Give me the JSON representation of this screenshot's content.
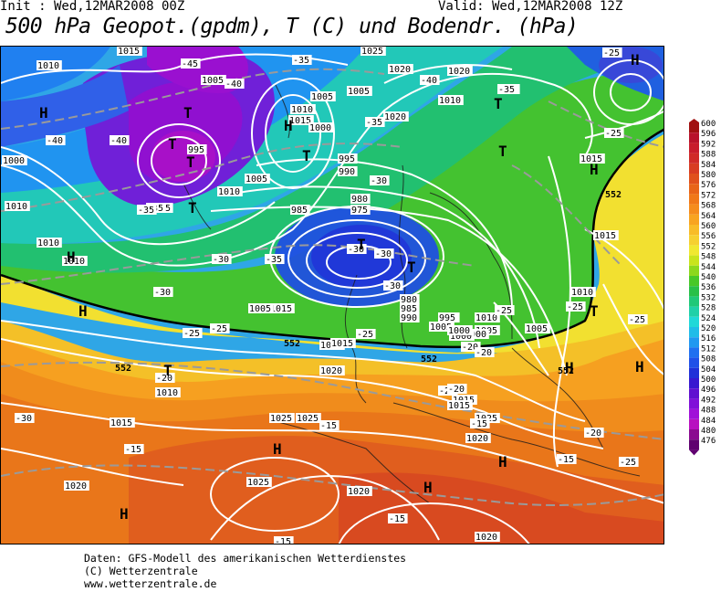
{
  "header": {
    "init": "Init : Wed,12MAR2008 00Z",
    "valid": "Valid: Wed,12MAR2008 12Z",
    "title": "500 hPa Geopot.(gpdm), T (C) und Bodendr. (hPa)"
  },
  "footer": {
    "line1": "Daten: GFS-Modell des amerikanischen Wetterdienstes",
    "line2": "(C) Wetterzentrale",
    "line3": "www.wetterzentrale.de"
  },
  "legend": {
    "levels": [
      {
        "label": "600",
        "color": "#a01010"
      },
      {
        "label": "596",
        "color": "#b8122a"
      },
      {
        "label": "592",
        "color": "#c81c2c"
      },
      {
        "label": "588",
        "color": "#d02a28"
      },
      {
        "label": "584",
        "color": "#d83c22"
      },
      {
        "label": "580",
        "color": "#e0501c"
      },
      {
        "label": "576",
        "color": "#e86418"
      },
      {
        "label": "572",
        "color": "#f07818"
      },
      {
        "label": "568",
        "color": "#f58c1c"
      },
      {
        "label": "564",
        "color": "#f8a420"
      },
      {
        "label": "560",
        "color": "#f8bc28"
      },
      {
        "label": "556",
        "color": "#f6d030"
      },
      {
        "label": "552",
        "color": "#f0e830"
      },
      {
        "label": "548",
        "color": "#c8e41c"
      },
      {
        "label": "544",
        "color": "#8cd81c"
      },
      {
        "label": "540",
        "color": "#48c828"
      },
      {
        "label": "536",
        "color": "#28c048"
      },
      {
        "label": "532",
        "color": "#20c878"
      },
      {
        "label": "528",
        "color": "#20d0a8"
      },
      {
        "label": "524",
        "color": "#20d8d8"
      },
      {
        "label": "520",
        "color": "#20bce8"
      },
      {
        "label": "516",
        "color": "#2098f0"
      },
      {
        "label": "512",
        "color": "#2070f0"
      },
      {
        "label": "508",
        "color": "#2050e8"
      },
      {
        "label": "504",
        "color": "#2030d8"
      },
      {
        "label": "500",
        "color": "#3818d0"
      },
      {
        "label": "496",
        "color": "#6010d0"
      },
      {
        "label": "492",
        "color": "#8010d8"
      },
      {
        "label": "488",
        "color": "#a010d8"
      },
      {
        "label": "484",
        "color": "#b810c0"
      },
      {
        "label": "480",
        "color": "#8a0a90"
      },
      {
        "label": "476",
        "color": "#600070"
      }
    ]
  },
  "map": {
    "pressure_centers": [
      {
        "label": "H"
      },
      {
        "label": "T"
      },
      {
        "label": "T"
      },
      {
        "label": "H"
      },
      {
        "label": "T"
      },
      {
        "label": "H"
      },
      {
        "label": "T"
      },
      {
        "label": "T"
      },
      {
        "label": "T"
      },
      {
        "label": "H"
      },
      {
        "label": "H"
      },
      {
        "label": "T"
      },
      {
        "label": "T"
      },
      {
        "label": "T"
      },
      {
        "label": "H"
      },
      {
        "label": "T"
      },
      {
        "label": "H"
      },
      {
        "label": "H"
      },
      {
        "label": "H"
      },
      {
        "label": "H"
      },
      {
        "label": "H"
      },
      {
        "label": "H"
      },
      {
        "label": "T"
      }
    ],
    "isobar_labels": [
      "1015",
      "1010",
      "1005",
      "1000",
      "995",
      "1005",
      "1010",
      "1015",
      "1020",
      "1025",
      "1010",
      "1005",
      "1000",
      "995",
      "990",
      "985",
      "980",
      "975",
      "1005",
      "1010",
      "1015",
      "1020",
      "1025",
      "1020",
      "1015",
      "1010",
      "1005",
      "1000",
      "995",
      "990",
      "985",
      "980",
      "1010",
      "1015",
      "1020",
      "1025",
      "1020",
      "1015",
      "1010",
      "1005",
      "1000",
      "1010",
      "1015",
      "1020",
      "1025",
      "1020",
      "1020",
      "1010",
      "1015",
      "1005",
      "1000",
      "995",
      "1005",
      "1010",
      "1015",
      "1025",
      "1020"
    ],
    "temp_labels": [
      "-45",
      "-40",
      "-40",
      "-35",
      "-35",
      "-40",
      "-35",
      "-30",
      "-30",
      "-30",
      "-25",
      "-25",
      "-25",
      "-20",
      "-20",
      "-15",
      "-15",
      "-15",
      "-15",
      "-20",
      "-20",
      "-25",
      "-25",
      "-25",
      "-30",
      "-35",
      "-35",
      "-40",
      "-35",
      "-30",
      "-25",
      "-25",
      "-20",
      "-20",
      "-15",
      "-35",
      "-30",
      "-25",
      "-15",
      "-25",
      "-30"
    ],
    "contour_labels": [
      "552",
      "552",
      "552",
      "552",
      "552"
    ]
  }
}
